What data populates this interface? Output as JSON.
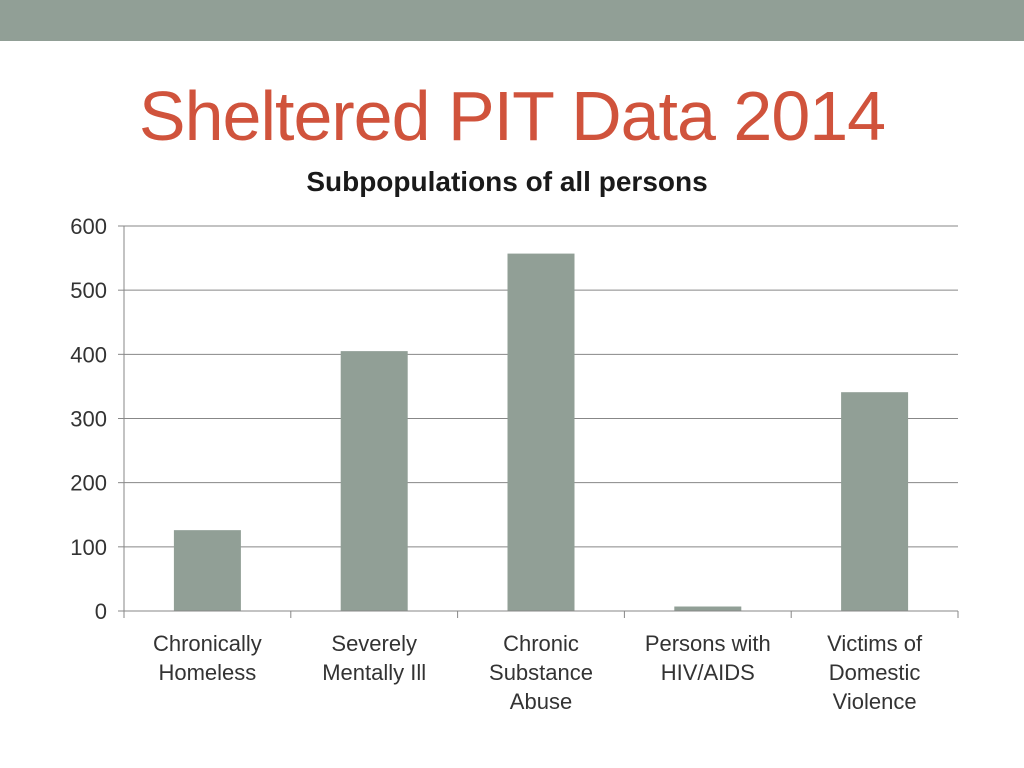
{
  "slide": {
    "title": "Sheltered PIT Data 2014",
    "title_color": "#D0533C",
    "top_bar_color": "#919F96"
  },
  "chart_data": {
    "type": "bar",
    "title": "Subpopulations of all persons",
    "categories": [
      [
        "Chronically",
        "Homeless"
      ],
      [
        "Severely",
        "Mentally Ill"
      ],
      [
        "Chronic",
        "Substance",
        "Abuse"
      ],
      [
        "Persons with",
        "HIV/AIDS"
      ],
      [
        "Victims of",
        "Domestic",
        "Violence"
      ]
    ],
    "series": [
      {
        "values": [
          126,
          405,
          557,
          7,
          341
        ]
      }
    ],
    "ylim": [
      0,
      600
    ],
    "yticks": [
      0,
      100,
      200,
      300,
      400,
      500,
      600
    ],
    "grid": true,
    "legend": "none",
    "bar_color": "#919F96",
    "grid_color": "#878787"
  }
}
